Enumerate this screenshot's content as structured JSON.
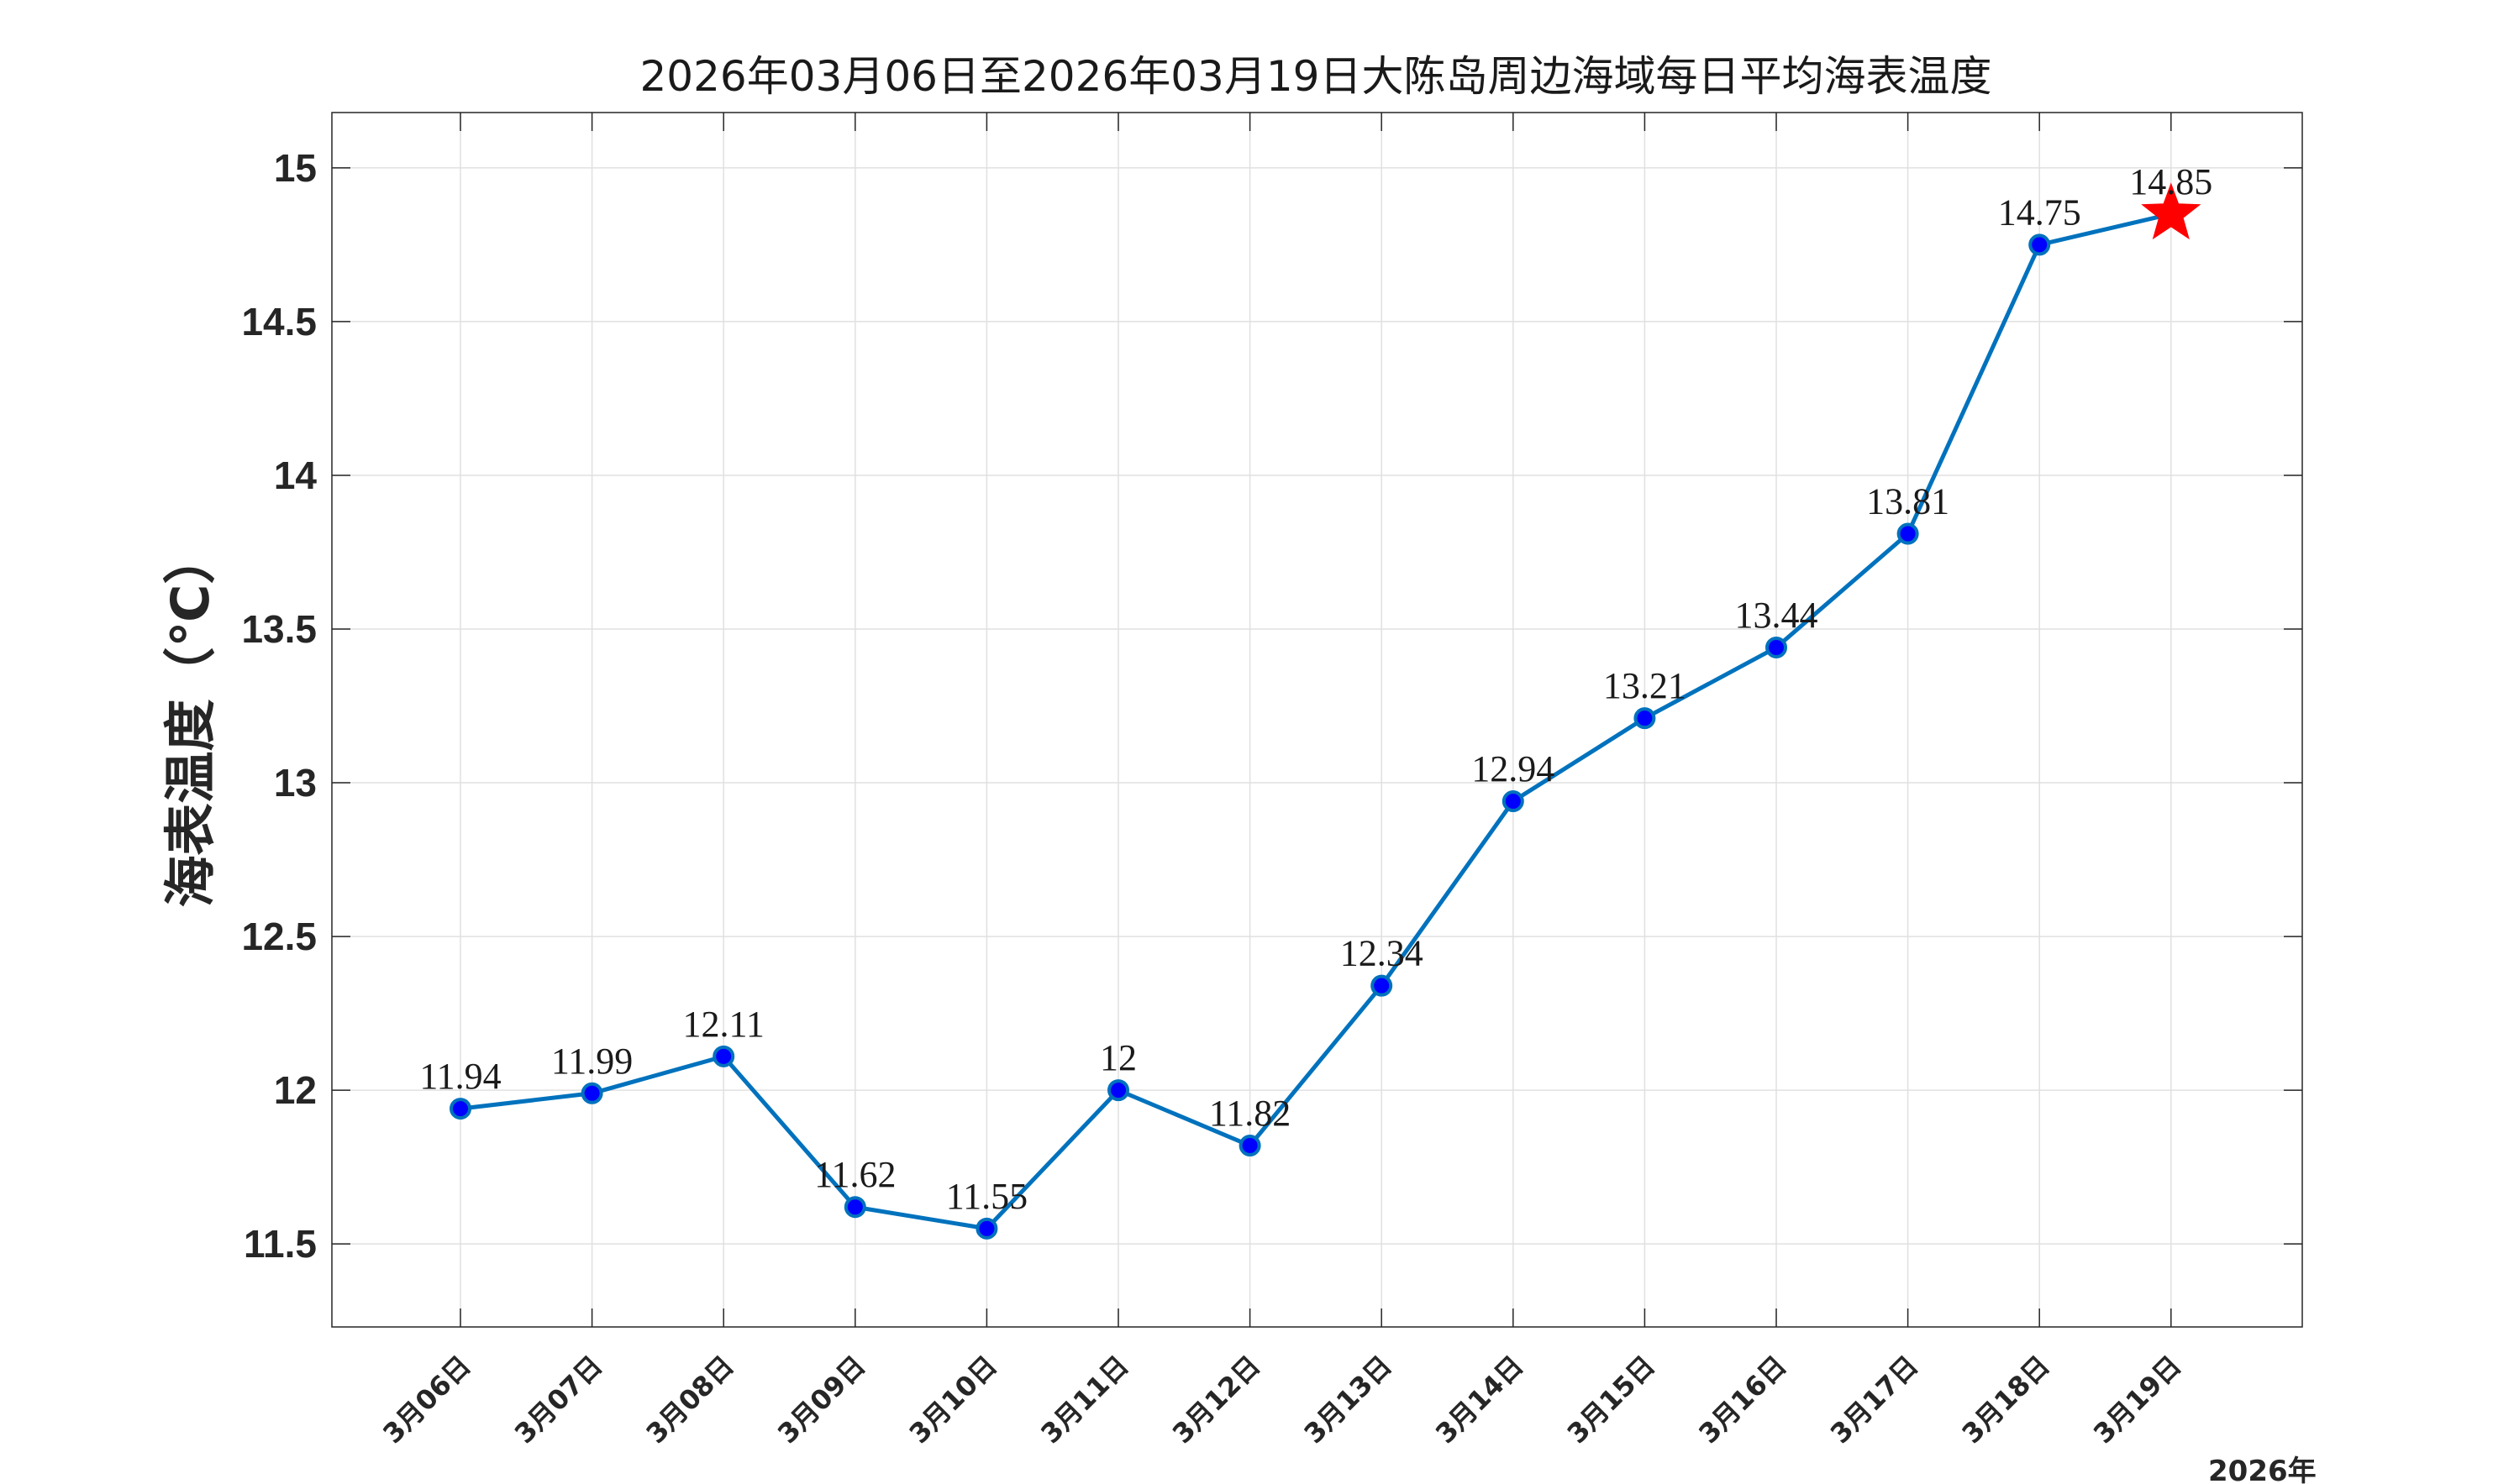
{
  "chart_data": {
    "type": "line",
    "title": "2026年03月06日至2026年03月19日大陈岛周边海域每日平均海表温度",
    "ylabel": "海表温度（℃）",
    "xlabel_note": "2026年",
    "categories": [
      "3月06日",
      "3月07日",
      "3月08日",
      "3月09日",
      "3月10日",
      "3月11日",
      "3月12日",
      "3月13日",
      "3月14日",
      "3月15日",
      "3月16日",
      "3月17日",
      "3月18日",
      "3月19日"
    ],
    "values": [
      11.94,
      11.99,
      12.11,
      11.62,
      11.55,
      12,
      11.82,
      12.34,
      12.94,
      13.21,
      13.44,
      13.81,
      14.75,
      14.85
    ],
    "data_labels": [
      "11.94",
      "11.99",
      "12.11",
      "11.62",
      "11.55",
      "12",
      "11.82",
      "12.34",
      "12.94",
      "13.21",
      "13.44",
      "13.81",
      "14.75",
      "14.85"
    ],
    "ylim": [
      11.23,
      15.18
    ],
    "yticks": [
      11.5,
      12,
      12.5,
      13,
      13.5,
      14,
      14.5,
      15
    ],
    "ytick_labels": [
      "11.5",
      "12",
      "12.5",
      "13",
      "13.5",
      "14",
      "14.5",
      "15"
    ],
    "grid": true,
    "highlight_last": "star",
    "colors": {
      "line": "#0072bd",
      "marker_fill": "#0000ff",
      "star": "#ff0000",
      "axes": "#262626",
      "grid": "#e0e0e0"
    }
  }
}
